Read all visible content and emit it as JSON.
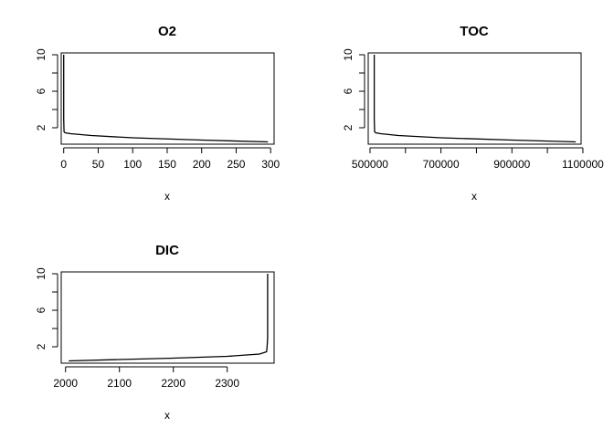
{
  "chart_data": [
    {
      "type": "line",
      "title": "O2",
      "xlabel": "x",
      "ylabel": "",
      "xlim": [
        -3.6,
        305
      ],
      "ylim": [
        10.2,
        0.2
      ],
      "xticks": [
        0,
        50,
        100,
        150,
        200,
        250,
        300
      ],
      "xtick_labels": [
        "0",
        "50",
        "100",
        "150",
        "200",
        "250",
        "300"
      ],
      "yticks": [
        2,
        4,
        6,
        8,
        10
      ],
      "ytick_labels": [
        "2",
        "",
        "6",
        "",
        "10"
      ],
      "series": [
        {
          "x": [
            0,
            0,
            0.5,
            2,
            10,
            40,
            100,
            200,
            296
          ],
          "y": [
            10,
            3.0,
            1.55,
            1.45,
            1.35,
            1.15,
            0.9,
            0.65,
            0.45
          ]
        }
      ]
    },
    {
      "type": "line",
      "title": "TOC",
      "xlabel": "x",
      "ylabel": "",
      "xlim": [
        495000,
        1095000
      ],
      "ylim": [
        10.2,
        0.2
      ],
      "xticks": [
        500000,
        600000,
        700000,
        800000,
        900000,
        1000000,
        1100000
      ],
      "xtick_labels": [
        "500000",
        "",
        "700000",
        "",
        "900000",
        "",
        "1100000"
      ],
      "yticks": [
        2,
        4,
        6,
        8,
        10
      ],
      "ytick_labels": [
        "2",
        "",
        "6",
        "",
        "10"
      ],
      "series": [
        {
          "x": [
            512000,
            512000,
            513000,
            516000,
            530000,
            580000,
            700000,
            900000,
            1080000
          ],
          "y": [
            10,
            3.0,
            1.55,
            1.45,
            1.35,
            1.15,
            0.9,
            0.65,
            0.45
          ]
        }
      ]
    },
    {
      "type": "line",
      "title": "DIC",
      "xlabel": "x",
      "ylabel": "",
      "xlim": [
        1992,
        2387
      ],
      "ylim": [
        10.2,
        0.2
      ],
      "xticks": [
        2000,
        2100,
        2200,
        2300
      ],
      "xtick_labels": [
        "2000",
        "2100",
        "2200",
        "2300"
      ],
      "yticks": [
        2,
        4,
        6,
        8,
        10
      ],
      "ytick_labels": [
        "2",
        "",
        "6",
        "",
        "10"
      ],
      "series": [
        {
          "x": [
            2006,
            2100,
            2200,
            2300,
            2360,
            2373,
            2374,
            2375,
            2375
          ],
          "y": [
            0.45,
            0.6,
            0.75,
            0.95,
            1.2,
            1.45,
            2.0,
            3.0,
            10
          ]
        }
      ]
    }
  ]
}
